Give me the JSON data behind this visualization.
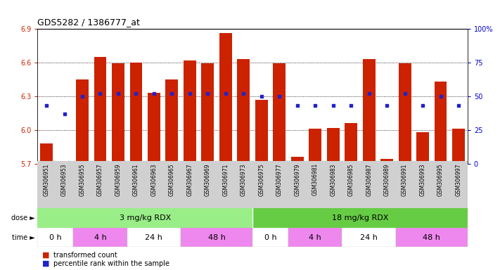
{
  "title": "GDS5282 / 1386777_at",
  "samples": [
    "GSM306951",
    "GSM306953",
    "GSM306955",
    "GSM306957",
    "GSM306959",
    "GSM306961",
    "GSM306963",
    "GSM306965",
    "GSM306967",
    "GSM306969",
    "GSM306971",
    "GSM306973",
    "GSM306975",
    "GSM306977",
    "GSM306979",
    "GSM306981",
    "GSM306983",
    "GSM306985",
    "GSM306987",
    "GSM306989",
    "GSM306991",
    "GSM306993",
    "GSM306995",
    "GSM306997"
  ],
  "bar_values": [
    5.88,
    5.72,
    6.45,
    6.65,
    6.59,
    6.6,
    6.33,
    6.45,
    6.62,
    6.59,
    6.86,
    6.63,
    6.27,
    6.59,
    5.76,
    6.01,
    6.02,
    6.06,
    6.63,
    5.74,
    6.59,
    5.98,
    6.43,
    6.01
  ],
  "percentile_values": [
    43,
    37,
    50,
    52,
    52,
    52,
    52,
    52,
    52,
    52,
    52,
    52,
    50,
    50,
    43,
    43,
    43,
    43,
    52,
    43,
    52,
    43,
    50,
    43
  ],
  "ylim_left": [
    5.7,
    6.9
  ],
  "ylim_right": [
    0,
    100
  ],
  "yticks_left": [
    5.7,
    6.0,
    6.3,
    6.6,
    6.9
  ],
  "yticks_right": [
    0,
    25,
    50,
    75,
    100
  ],
  "ytick_labels_right": [
    "0",
    "25",
    "50",
    "75",
    "100%"
  ],
  "bar_color": "#cc2200",
  "percentile_color": "#2222cc",
  "background_color": "#ffffff",
  "label_bg_color": "#d0d0d0",
  "dose_colors": [
    "#99ee88",
    "#66cc44"
  ],
  "dose_labels": [
    "3 mg/kg RDX",
    "18 mg/kg RDX"
  ],
  "dose_starts": [
    0,
    12
  ],
  "dose_ends": [
    12,
    24
  ],
  "time_groups": [
    {
      "label": "0 h",
      "start": 0,
      "end": 2,
      "color": "#ffffff"
    },
    {
      "label": "4 h",
      "start": 2,
      "end": 5,
      "color": "#ee88ee"
    },
    {
      "label": "24 h",
      "start": 5,
      "end": 8,
      "color": "#ffffff"
    },
    {
      "label": "48 h",
      "start": 8,
      "end": 12,
      "color": "#ee88ee"
    },
    {
      "label": "0 h",
      "start": 12,
      "end": 14,
      "color": "#ffffff"
    },
    {
      "label": "4 h",
      "start": 14,
      "end": 17,
      "color": "#ee88ee"
    },
    {
      "label": "24 h",
      "start": 17,
      "end": 20,
      "color": "#ffffff"
    },
    {
      "label": "48 h",
      "start": 20,
      "end": 24,
      "color": "#ee88ee"
    }
  ],
  "legend_items": [
    {
      "label": "transformed count",
      "color": "#cc2200"
    },
    {
      "label": "percentile rank within the sample",
      "color": "#2222cc"
    }
  ]
}
